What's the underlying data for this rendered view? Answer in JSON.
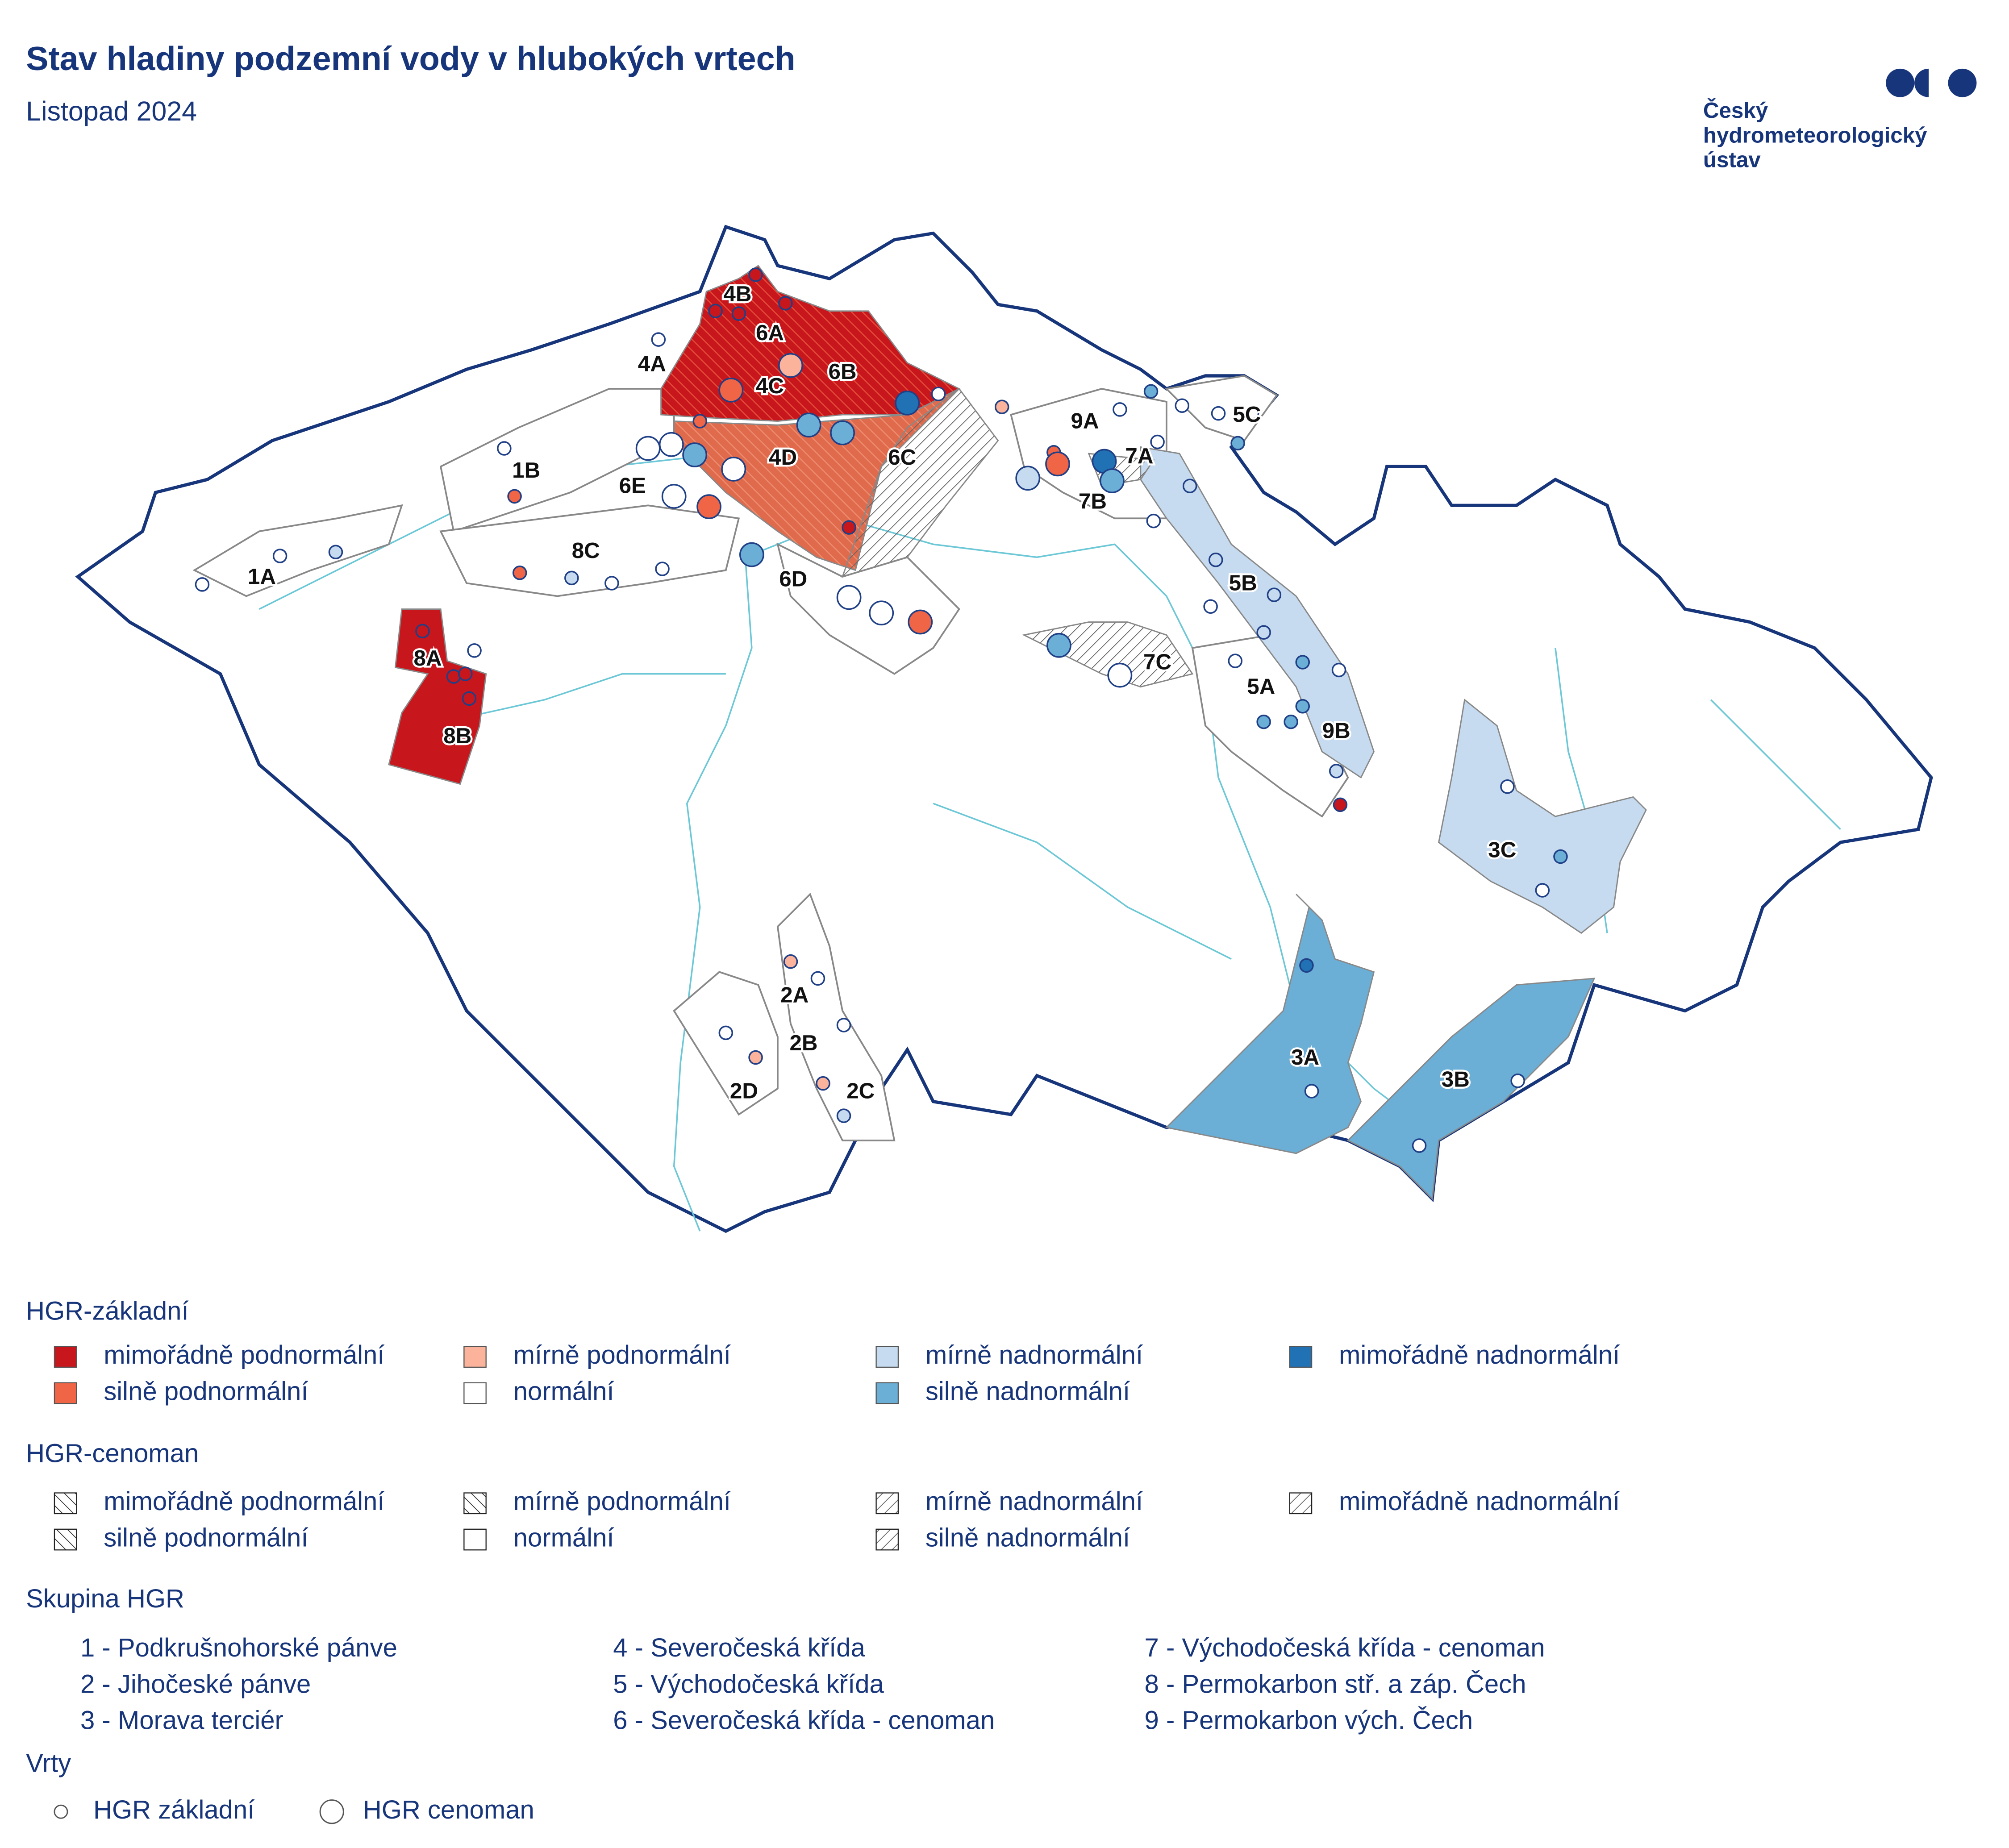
{
  "header": {
    "title": "Stav hladiny podzemní vody v hlubokých vrtech",
    "subtitle": "Listopad 2024",
    "logo": [
      "Český",
      "hydrometeorologický",
      "ústav"
    ]
  },
  "map": {
    "regions": [
      "1A",
      "1B",
      "2A",
      "2B",
      "2C",
      "2D",
      "3A",
      "3B",
      "3C",
      "4A",
      "4B",
      "4C",
      "4D",
      "5A",
      "5B",
      "5C",
      "6A",
      "6B",
      "6C",
      "6D",
      "6E",
      "7A",
      "7B",
      "7C",
      "8A",
      "8B",
      "8C",
      "9A",
      "9B"
    ]
  },
  "legend": {
    "basic": {
      "title": "HGR-základní",
      "items": [
        {
          "label": "mimořádně podnormální",
          "color": "#c8161d"
        },
        {
          "label": "silně podnormální",
          "color": "#f06545"
        },
        {
          "label": "mírně podnormální",
          "color": "#fbb39c"
        },
        {
          "label": "normální",
          "color": "#ffffff"
        },
        {
          "label": "mírně nadnormální",
          "color": "#c6dbef"
        },
        {
          "label": "silně nadnormální",
          "color": "#6baed6"
        },
        {
          "label": "mimořádně nadnormální",
          "color": "#2171b5"
        }
      ]
    },
    "cenoman": {
      "title": "HGR-cenoman",
      "items": [
        "mimořádně podnormální",
        "silně podnormální",
        "mírně podnormální",
        "normální",
        "mírně nadnormální",
        "silně nadnormální",
        "mimořádně nadnormální"
      ]
    },
    "groups": {
      "title": "Skupina HGR",
      "items": [
        "1 - Podkrušnohorské pánve",
        "2 - Jihočeské pánve",
        "3 - Morava terciér",
        "4 - Severočeská křída",
        "5 - Východočeská křída",
        "6 - Severočeská křída - cenoman",
        "7 - Východočeská křída - cenoman",
        "8 - Permokarbon stř. a záp. Čech",
        "9 - Permokarbon vých. Čech"
      ]
    },
    "wells": {
      "title": "Vrty",
      "items": [
        "HGR základní",
        "HGR cenoman"
      ]
    }
  }
}
